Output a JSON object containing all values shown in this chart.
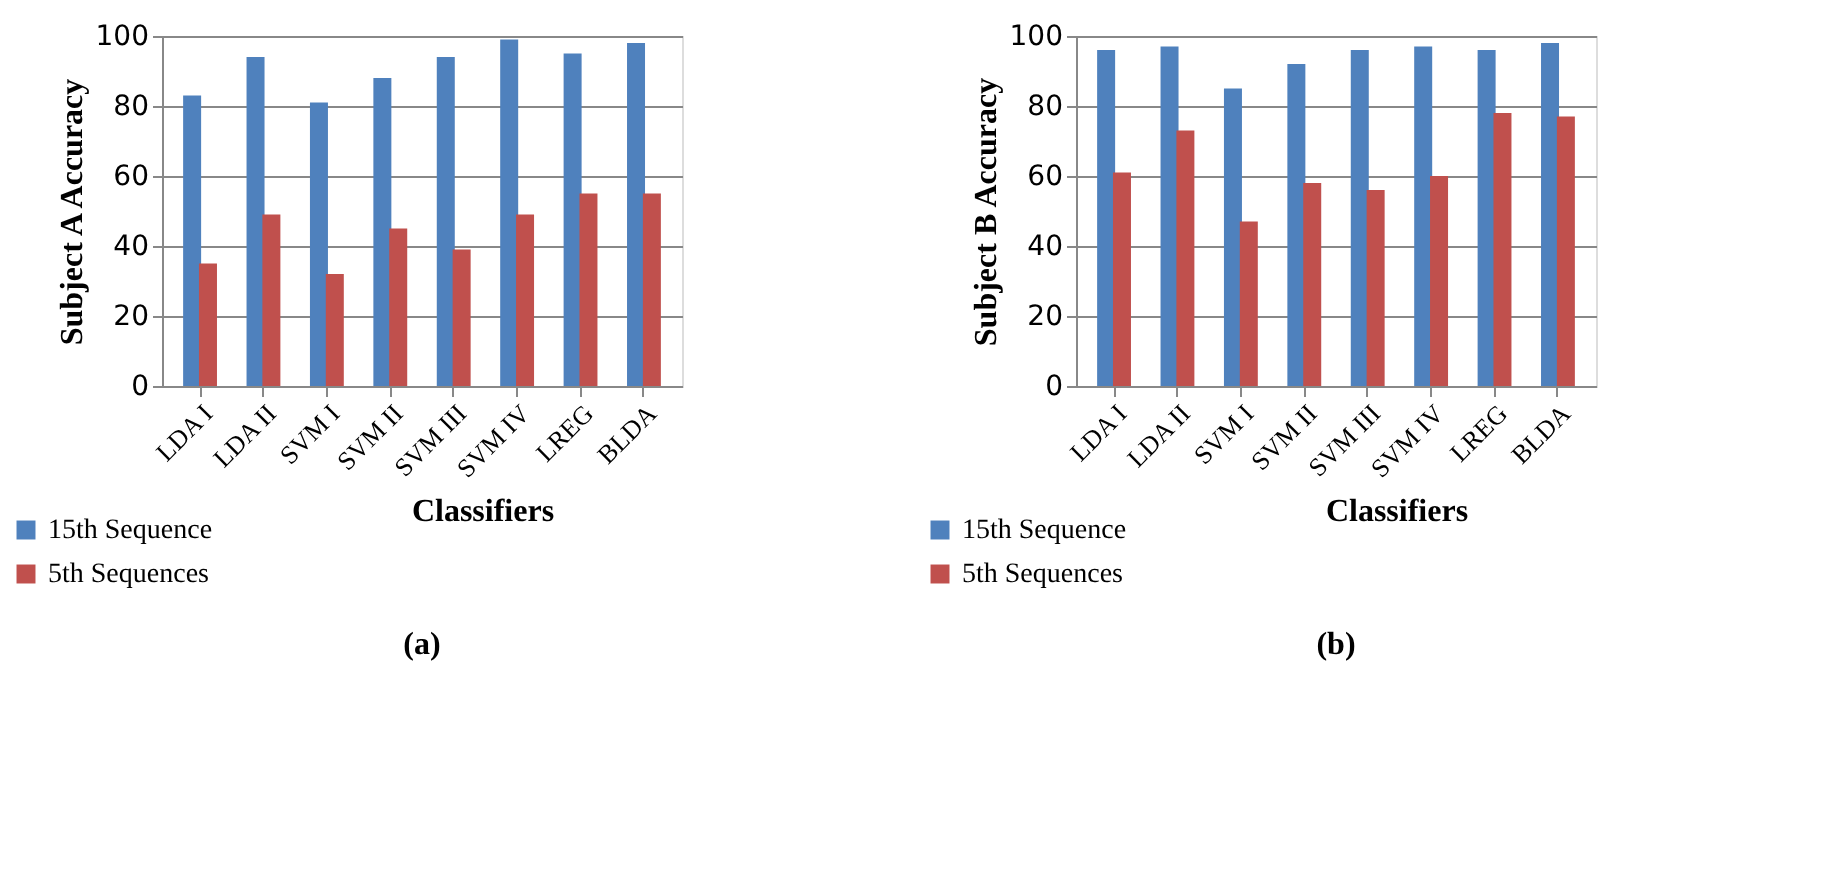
{
  "chart_data": [
    {
      "type": "bar",
      "title": "(a)",
      "xlabel": "Classifiers",
      "ylabel": "Subject A Accuracy",
      "categories": [
        "LDA I",
        "LDA II",
        "SVM I",
        "SVM II",
        "SVM III",
        "SVM IV",
        "LREG",
        "BLDA"
      ],
      "series": [
        {
          "name": "15th Sequence",
          "color": "#4f81bd",
          "values": [
            83,
            94,
            81,
            88,
            94,
            99,
            95,
            98
          ]
        },
        {
          "name": "5th Sequences",
          "color": "#c0504d",
          "values": [
            35,
            49,
            32,
            45,
            39,
            49,
            55,
            55
          ]
        }
      ],
      "ylim": [
        0,
        100
      ],
      "yticks": [
        0,
        20,
        40,
        60,
        80,
        100
      ],
      "grid": "y",
      "legend": "bottom left"
    },
    {
      "type": "bar",
      "title": "(b)",
      "xlabel": "Classifiers",
      "ylabel": "Subject B Accuracy",
      "categories": [
        "LDA I",
        "LDA II",
        "SVM I",
        "SVM II",
        "SVM III",
        "SVM IV",
        "LREG",
        "BLDA"
      ],
      "series": [
        {
          "name": "15th Sequence",
          "color": "#4f81bd",
          "values": [
            96,
            97,
            85,
            92,
            96,
            97,
            96,
            98
          ]
        },
        {
          "name": "5th Sequences",
          "color": "#c0504d",
          "values": [
            61,
            73,
            47,
            58,
            56,
            60,
            78,
            77
          ]
        }
      ],
      "ylim": [
        0,
        100
      ],
      "yticks": [
        0,
        20,
        40,
        60,
        80,
        100
      ],
      "grid": "y",
      "legend": "bottom left"
    }
  ]
}
